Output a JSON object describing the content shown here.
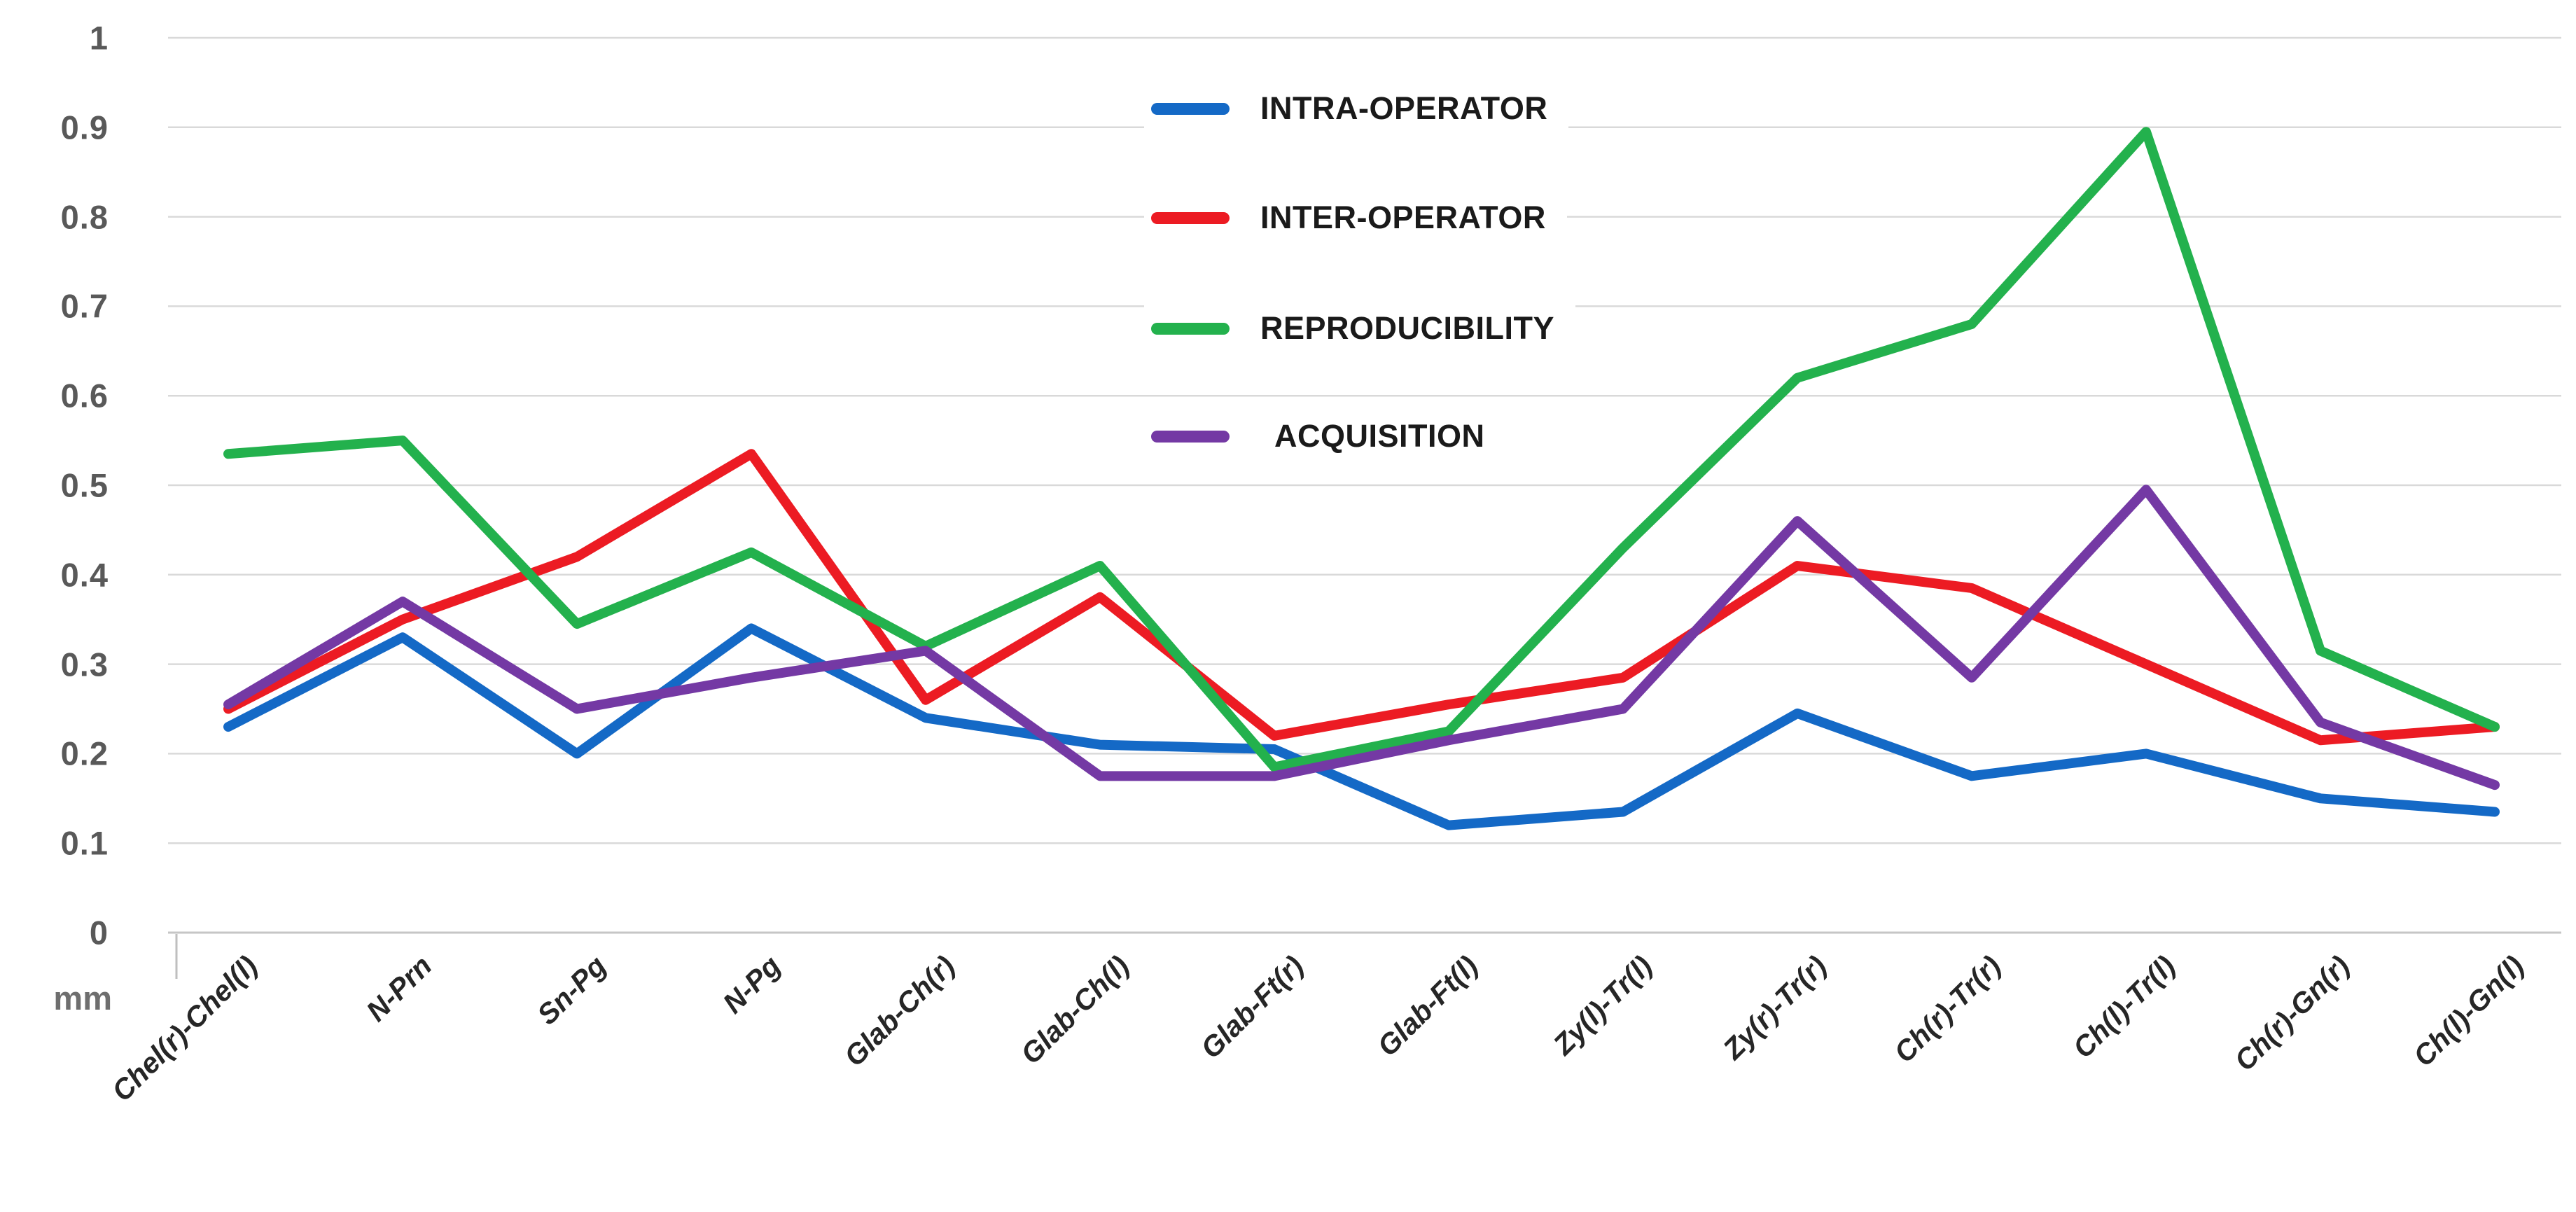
{
  "chart_data": {
    "type": "line",
    "title": "",
    "xlabel": "",
    "ylabel": "mm",
    "unit_label": "mm",
    "ylim": [
      0,
      1
    ],
    "grid": true,
    "legend_position": "top-center-inside",
    "y_ticks": [
      "1",
      "0.9",
      "0.8",
      "0.7",
      "0.6",
      "0.5",
      "0.4",
      "0.3",
      "0.2",
      "0.1",
      "0"
    ],
    "y_tick_values": [
      1,
      0.9,
      0.8,
      0.7,
      0.6,
      0.5,
      0.4,
      0.3,
      0.2,
      0.1,
      0
    ],
    "categories": [
      "Chel(r)-Chel(l)",
      "N-Prn",
      "Sn-Pg",
      "N-Pg",
      "Glab-Ch(r)",
      "Glab-Ch(l)",
      "Glab-Ft(r)",
      "Glab-Ft(l)",
      "Zy(l)-Tr(l)",
      "Zy(r)-Tr(r)",
      "Ch(r)-Tr(r)",
      "Ch(l)-Tr(l)",
      "Ch(r)-Gn(r)",
      "Ch(l)-Gn(l)"
    ],
    "series": [
      {
        "name": "INTRA-OPERATOR",
        "color": "#1469c6",
        "values": [
          0.23,
          0.33,
          0.2,
          0.34,
          0.24,
          0.21,
          0.205,
          0.12,
          0.135,
          0.245,
          0.175,
          0.2,
          0.15,
          0.135
        ]
      },
      {
        "name": "INTER-OPERATOR",
        "color": "#ec1b23",
        "values": [
          0.25,
          0.35,
          0.42,
          0.535,
          0.26,
          0.375,
          0.22,
          0.255,
          0.285,
          0.41,
          0.385,
          0.3,
          0.215,
          0.23
        ]
      },
      {
        "name": "REPRODUCIBILITY",
        "color": "#23b14d",
        "values": [
          0.535,
          0.55,
          0.345,
          0.425,
          0.32,
          0.41,
          0.185,
          0.225,
          0.43,
          0.62,
          0.68,
          0.895,
          0.315,
          0.23
        ]
      },
      {
        "name": "ACQUISITION",
        "color": "#7439a4",
        "values": [
          0.255,
          0.37,
          0.25,
          0.285,
          0.315,
          0.175,
          0.175,
          0.215,
          0.25,
          0.46,
          0.285,
          0.495,
          0.235,
          0.165
        ]
      }
    ],
    "colors": {
      "gridline": "#d9d9d9",
      "axis_line": "#c6c6c6",
      "tick_mark": "#bfbfbf",
      "y_tick_text": "#595959",
      "x_tick_text": "#262626",
      "legend_text": "#1a1a1a"
    }
  }
}
